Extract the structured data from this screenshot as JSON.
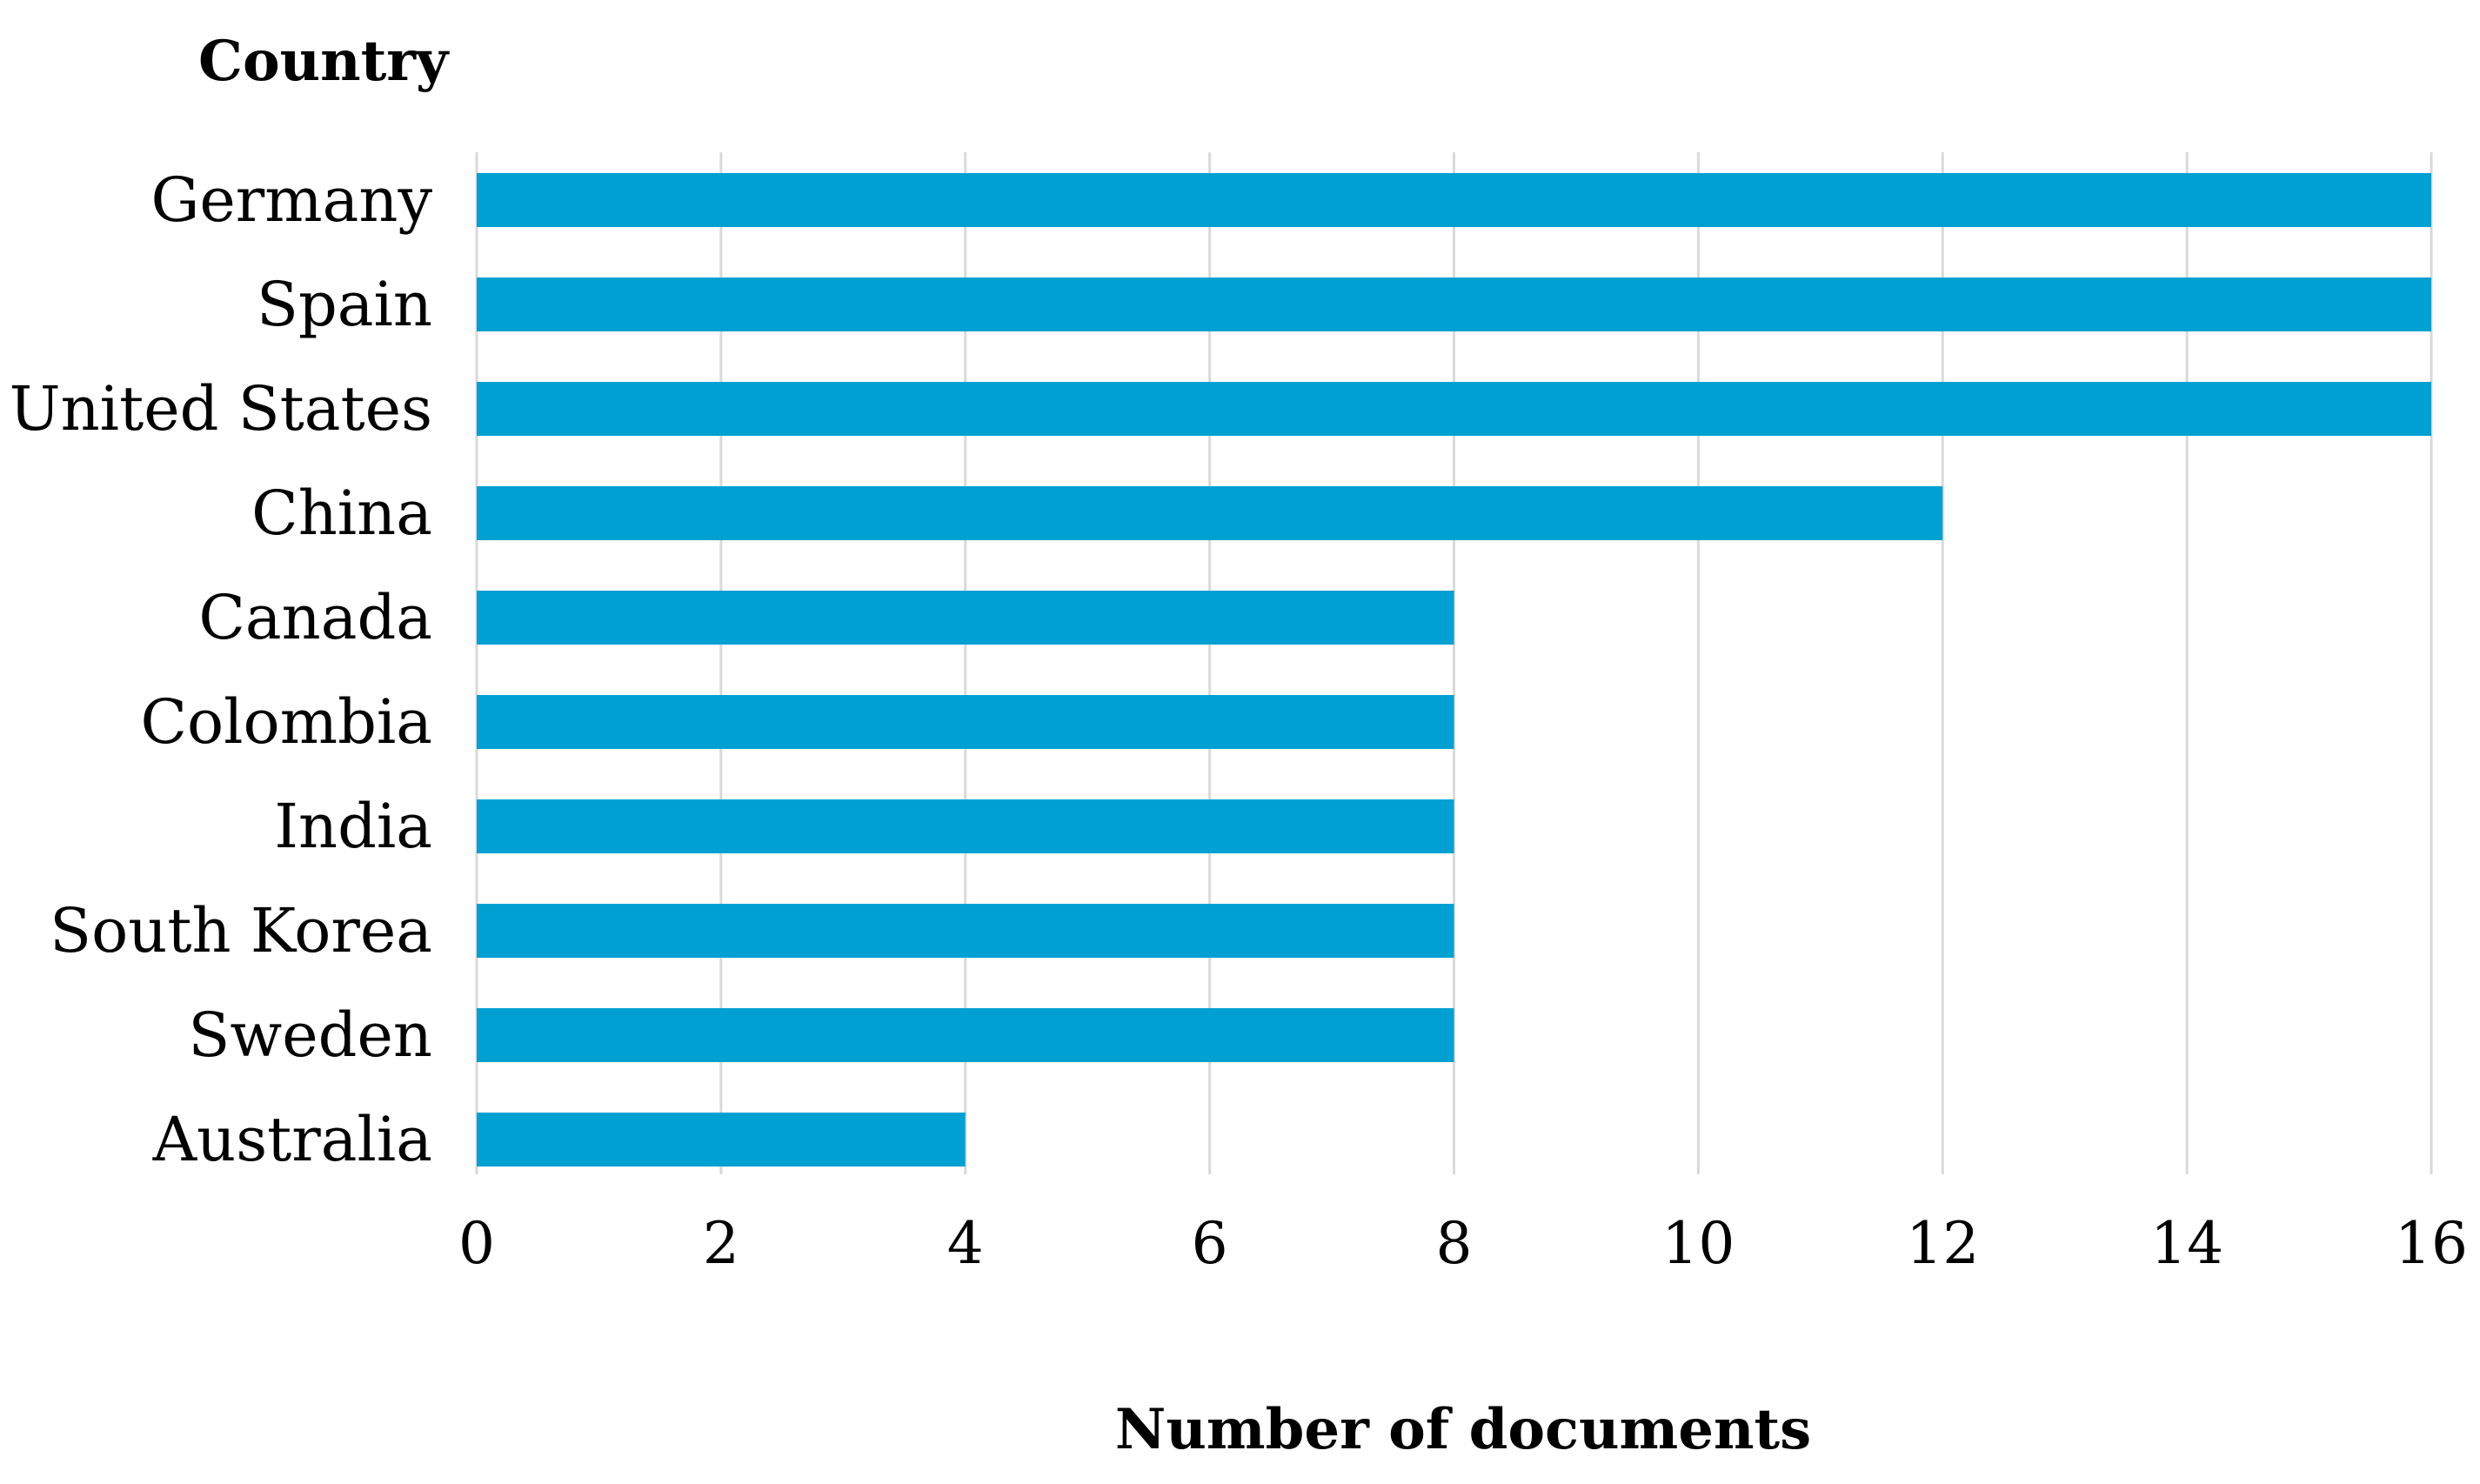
{
  "chart_data": {
    "type": "bar",
    "orientation": "horizontal",
    "title": "",
    "ylabel": "Country",
    "xlabel": "Number of documents",
    "categories": [
      "Germany",
      "Spain",
      "United States",
      "China",
      "Canada",
      "Colombia",
      "India",
      "South Korea",
      "Sweden",
      "Australia"
    ],
    "values": [
      16,
      16,
      16,
      12,
      8,
      8,
      8,
      8,
      8,
      4
    ],
    "xlim": [
      0,
      16
    ],
    "xticks": [
      0,
      2,
      4,
      6,
      8,
      10,
      12,
      14,
      16
    ],
    "grid": "vertical",
    "legend": "none",
    "bar_color": "#00A0D2",
    "grid_color": "#D9D9D9"
  }
}
